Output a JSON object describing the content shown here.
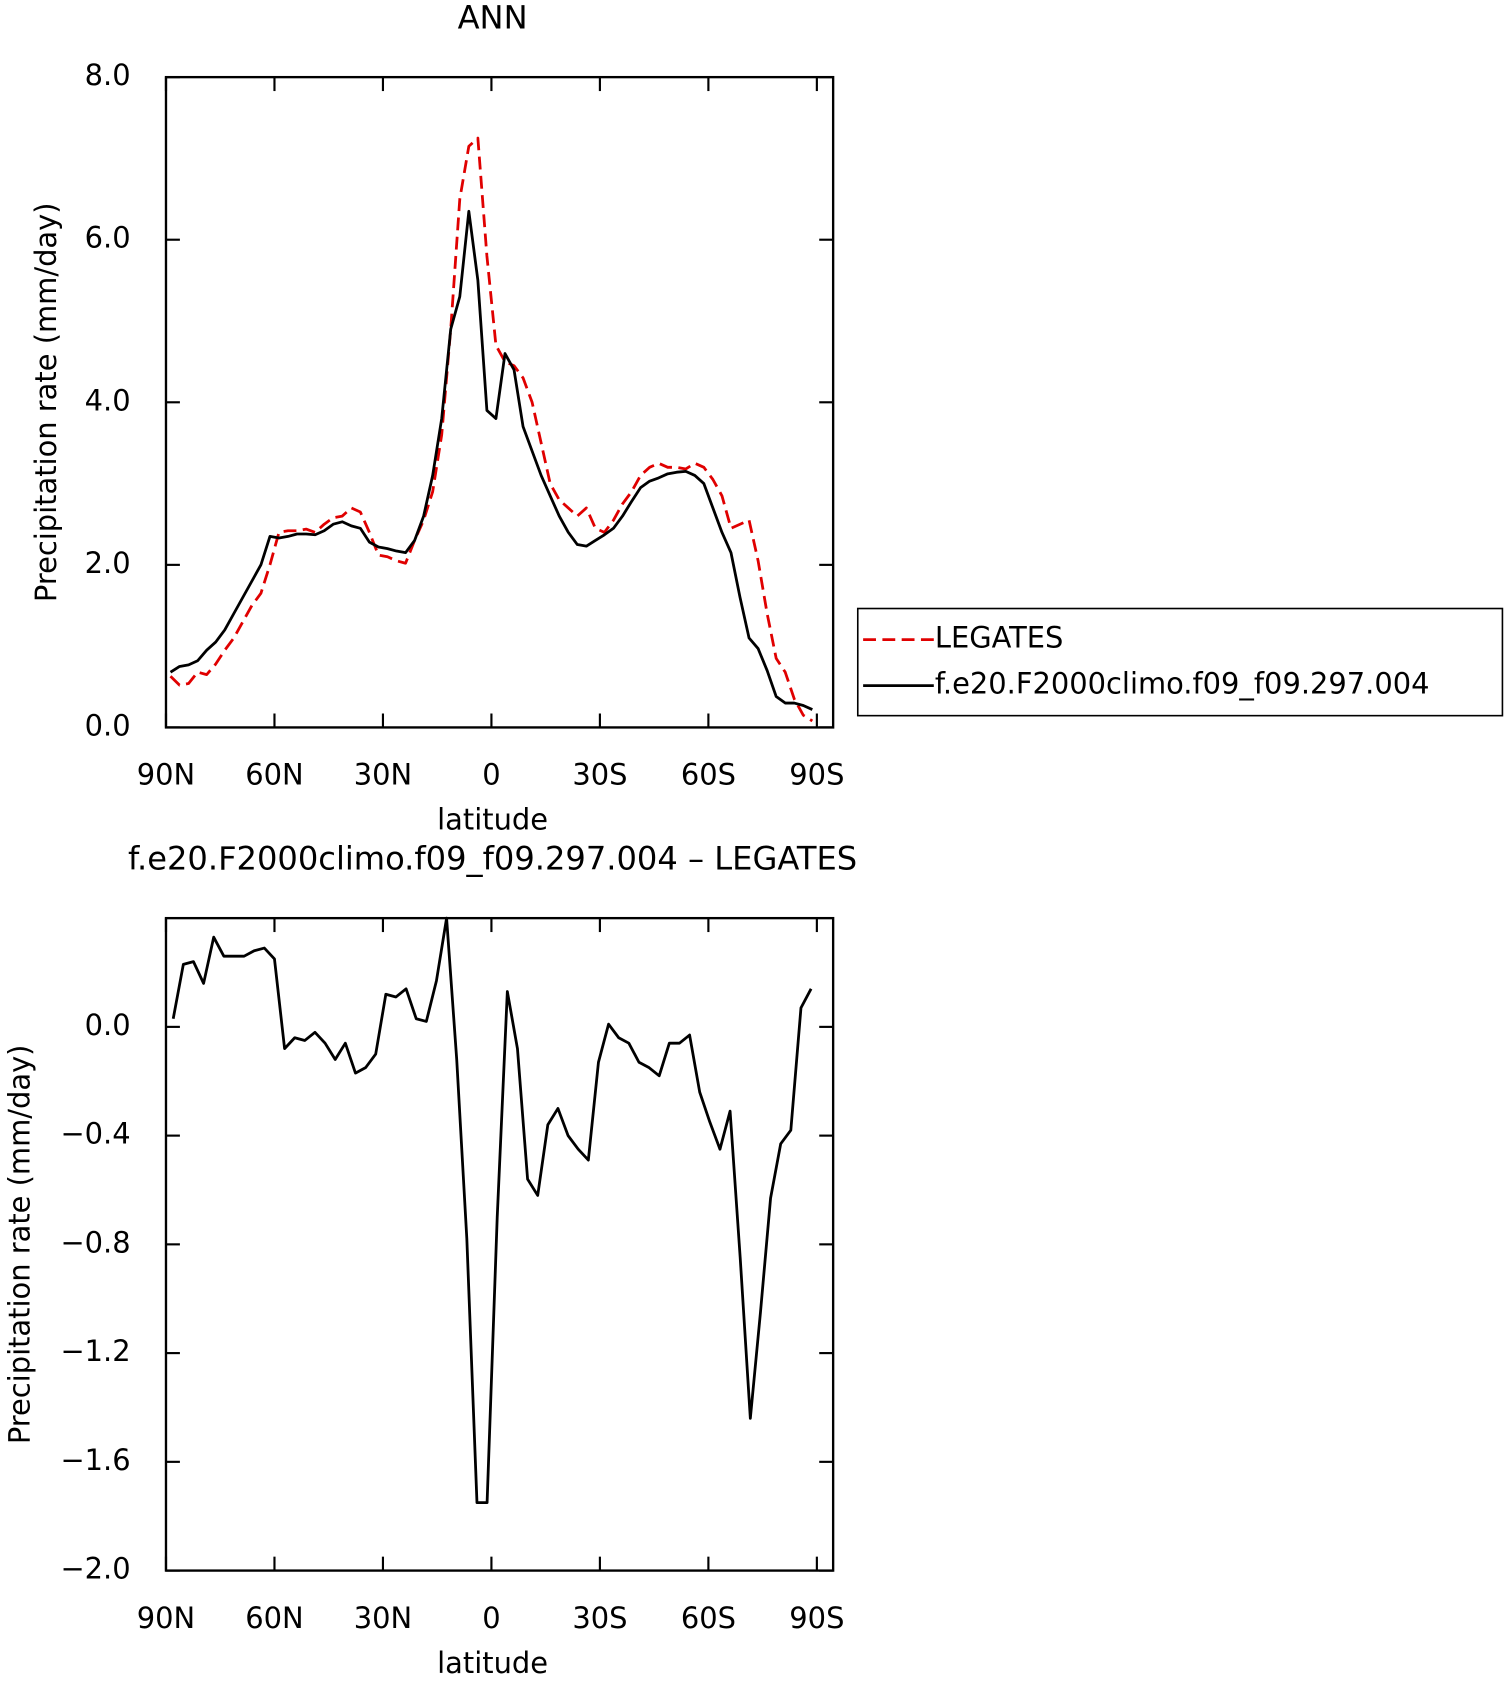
{
  "chart_data": [
    {
      "type": "line",
      "title": "ANN",
      "xlabel": "latitude",
      "ylabel": "Precipitation rate (mm/day)",
      "x": [
        88.75,
        86.25,
        83.75,
        81.25,
        78.75,
        76.25,
        73.75,
        71.25,
        68.75,
        66.25,
        63.75,
        61.25,
        58.75,
        56.25,
        53.75,
        51.25,
        48.75,
        46.25,
        43.75,
        41.25,
        38.75,
        36.25,
        33.75,
        31.25,
        28.75,
        26.25,
        23.75,
        21.25,
        18.75,
        16.25,
        13.75,
        11.25,
        8.75,
        6.25,
        3.75,
        1.25,
        -1.25,
        -3.75,
        -6.25,
        -8.75,
        -11.25,
        -13.75,
        -16.25,
        -18.75,
        -21.25,
        -23.75,
        -26.25,
        -28.75,
        -31.25,
        -33.75,
        -36.25,
        -38.75,
        -41.25,
        -43.75,
        -46.25,
        -48.75,
        -51.25,
        -53.75,
        -56.25,
        -58.75,
        -61.25,
        -63.75,
        -66.25,
        -68.75,
        -71.25,
        -73.75,
        -76.25,
        -78.75,
        -81.25,
        -83.75,
        -86.25,
        -88.75
      ],
      "series": [
        {
          "name": "LEGATES",
          "color": "#e00000",
          "line_style": "dashed",
          "values": [
            0.63,
            0.52,
            0.54,
            0.68,
            0.65,
            0.78,
            0.95,
            1.1,
            1.3,
            1.5,
            1.65,
            2.0,
            2.4,
            2.42,
            2.42,
            2.44,
            2.4,
            2.5,
            2.58,
            2.6,
            2.7,
            2.65,
            2.4,
            2.12,
            2.1,
            2.05,
            2.02,
            2.3,
            2.55,
            2.9,
            3.6,
            4.9,
            6.5,
            7.15,
            7.25,
            5.8,
            4.7,
            4.5,
            4.45,
            4.3,
            4.0,
            3.5,
            3.0,
            2.8,
            2.7,
            2.6,
            2.7,
            2.45,
            2.4,
            2.55,
            2.75,
            2.9,
            3.1,
            3.2,
            3.25,
            3.2,
            3.2,
            3.18,
            3.25,
            3.2,
            3.05,
            2.85,
            2.45,
            2.5,
            2.55,
            2.05,
            1.4,
            0.85,
            0.68,
            0.35,
            0.15,
            0.08
          ]
        },
        {
          "name": "f.e20.F2000climo.f09_f09.297.004",
          "color": "#000000",
          "line_style": "solid",
          "values": [
            0.68,
            0.75,
            0.77,
            0.82,
            0.95,
            1.05,
            1.2,
            1.4,
            1.6,
            1.8,
            2.0,
            2.35,
            2.33,
            2.35,
            2.38,
            2.38,
            2.37,
            2.42,
            2.5,
            2.53,
            2.48,
            2.45,
            2.28,
            2.22,
            2.2,
            2.17,
            2.15,
            2.3,
            2.6,
            3.1,
            3.8,
            4.9,
            5.3,
            6.35,
            5.5,
            3.9,
            3.8,
            4.6,
            4.4,
            3.7,
            3.4,
            3.1,
            2.85,
            2.6,
            2.4,
            2.25,
            2.23,
            2.3,
            2.37,
            2.45,
            2.6,
            2.78,
            2.95,
            3.03,
            3.07,
            3.12,
            3.14,
            3.15,
            3.1,
            3.0,
            2.7,
            2.4,
            2.15,
            1.6,
            1.1,
            0.97,
            0.7,
            0.38,
            0.3,
            0.3,
            0.27,
            0.22
          ]
        }
      ],
      "xlim": [
        90,
        -94.5
      ],
      "xticks": [
        {
          "value": 90,
          "label": "90N"
        },
        {
          "value": 60,
          "label": "60N"
        },
        {
          "value": 30,
          "label": "30N"
        },
        0,
        {
          "value": -30,
          "label": "30S"
        },
        {
          "value": -60,
          "label": "60S"
        },
        {
          "value": -90,
          "label": "90S"
        }
      ],
      "ylim": [
        0,
        8
      ],
      "yticks": [
        {
          "value": 0,
          "label": "0.0"
        },
        {
          "value": 2,
          "label": "2.0"
        },
        {
          "value": 4,
          "label": "4.0"
        },
        {
          "value": 6,
          "label": "6.0"
        },
        {
          "value": 8,
          "label": "8.0"
        }
      ],
      "legend": "right"
    },
    {
      "type": "line",
      "title": "f.e20.F2000climo.f09_f09.297.004 – LEGATES",
      "xlabel": "latitude",
      "ylabel": "Precipitation rate (mm/day)",
      "x": [
        88.0,
        85.2,
        82.4,
        79.6,
        76.8,
        74.0,
        71.2,
        68.4,
        65.6,
        62.8,
        60.0,
        57.2,
        54.4,
        51.6,
        48.8,
        46.0,
        43.2,
        40.4,
        37.6,
        34.8,
        32.0,
        29.2,
        26.4,
        23.6,
        20.8,
        18.0,
        15.2,
        12.4,
        9.6,
        6.8,
        4.0,
        1.2,
        -1.6,
        -4.4,
        -7.2,
        -10.0,
        -12.8,
        -15.6,
        -18.4,
        -21.2,
        -24.0,
        -26.8,
        -29.6,
        -32.4,
        -35.2,
        -38.0,
        -40.8,
        -43.6,
        -46.4,
        -49.2,
        -52.0,
        -54.8,
        -57.6,
        -60.4,
        -63.2,
        -66.0,
        -68.8,
        -71.6,
        -74.4,
        -77.2,
        -80.0,
        -82.8,
        -85.6,
        -88.4
      ],
      "values": [
        0.03,
        0.23,
        0.24,
        0.16,
        0.33,
        0.26,
        0.26,
        0.26,
        0.28,
        0.29,
        0.25,
        -0.08,
        -0.04,
        -0.05,
        -0.02,
        -0.06,
        -0.12,
        -0.06,
        -0.17,
        -0.15,
        -0.1,
        0.12,
        0.11,
        0.14,
        0.03,
        0.02,
        0.17,
        0.4,
        -0.12,
        -0.78,
        -1.75,
        -1.75,
        -0.7,
        0.13,
        -0.08,
        -0.56,
        -0.62,
        -0.36,
        -0.3,
        -0.4,
        -0.45,
        -0.49,
        -0.13,
        0.01,
        -0.04,
        -0.06,
        -0.13,
        -0.15,
        -0.18,
        -0.06,
        -0.06,
        -0.03,
        -0.24,
        -0.35,
        -0.45,
        -0.31,
        -0.85,
        -1.44,
        -1.05,
        -0.63,
        -0.43,
        -0.38,
        0.07,
        0.14
      ],
      "color": "#000000",
      "line_style": "solid",
      "xlim": [
        90,
        -94.5
      ],
      "xticks": [
        {
          "value": 90,
          "label": "90N"
        },
        {
          "value": 60,
          "label": "60N"
        },
        {
          "value": 30,
          "label": "30N"
        },
        0,
        {
          "value": -30,
          "label": "30S"
        },
        {
          "value": -60,
          "label": "60S"
        },
        {
          "value": -90,
          "label": "90S"
        }
      ],
      "ylim": [
        -2.0,
        0.4
      ],
      "yticks": [
        {
          "value": -2.0,
          "label": "−2.0"
        },
        {
          "value": -1.6,
          "label": "−1.6"
        },
        {
          "value": -1.2,
          "label": "−1.2"
        },
        {
          "value": -0.8,
          "label": "−0.8"
        },
        {
          "value": -0.4,
          "label": "−0.4"
        },
        {
          "value": 0,
          "label": "0.0"
        }
      ]
    }
  ]
}
